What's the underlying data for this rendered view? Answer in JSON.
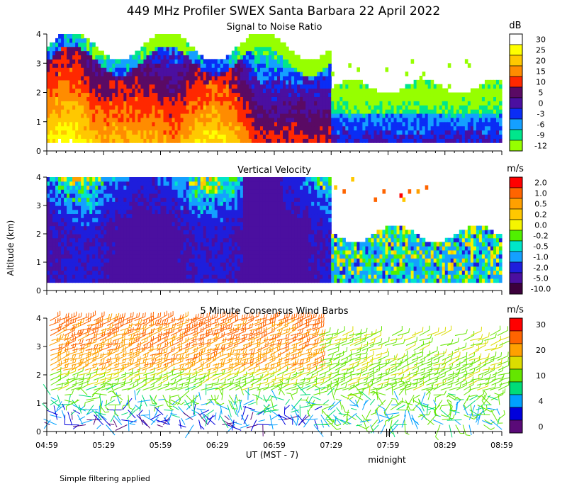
{
  "chart_data": {
    "type": "heatmap",
    "title": "449 MHz Profiler SWEX Santa Barbara 22 April 2022",
    "ylabel": "Altitude (km)",
    "xlabel": "UT  (MST - 7)",
    "x_ticks": [
      "04:59",
      "05:29",
      "05:59",
      "06:29",
      "06:59",
      "07:29",
      "07:59",
      "08:29",
      "08:59"
    ],
    "x_marker": "midnight",
    "y_ticks": [
      "0",
      "1",
      "2",
      "3",
      "4"
    ],
    "ylim": [
      0,
      4
    ],
    "note": "Simple filtering applied",
    "panels": [
      {
        "title": "Signal to Noise Ratio",
        "unit": "dB",
        "legend": [
          {
            "label": "30",
            "color": "#ffffff"
          },
          {
            "label": "25",
            "color": "#ffff00"
          },
          {
            "label": "20",
            "color": "#ffc800"
          },
          {
            "label": "15",
            "color": "#ff8c00"
          },
          {
            "label": "10",
            "color": "#ff2800"
          },
          {
            "label": "5",
            "color": "#5a0a64"
          },
          {
            "label": "0",
            "color": "#4b0fa0"
          },
          {
            "label": "-3",
            "color": "#0a2df5"
          },
          {
            "label": "-6",
            "color": "#14a0ff"
          },
          {
            "label": "-9",
            "color": "#00e68c"
          },
          {
            "label": "-12",
            "color": "#96ff00"
          }
        ]
      },
      {
        "title": "Vertical Velocity",
        "unit": "m/s",
        "legend": [
          {
            "label": "2.0",
            "color": "#ff0000"
          },
          {
            "label": "1.0",
            "color": "#ff6400"
          },
          {
            "label": "0.5",
            "color": "#ffa000"
          },
          {
            "label": "0.2",
            "color": "#ffc800"
          },
          {
            "label": "0.0",
            "color": "#f5f500"
          },
          {
            "label": "-0.2",
            "color": "#50f000"
          },
          {
            "label": "-0.5",
            "color": "#00e6c8"
          },
          {
            "label": "-1.0",
            "color": "#14a0ff"
          },
          {
            "label": "-2.0",
            "color": "#1e1edc"
          },
          {
            "label": "-5.0",
            "color": "#4b0fa0"
          },
          {
            "label": "-10.0",
            "color": "#3c003c"
          }
        ]
      },
      {
        "title": "5 Minute Consensus Wind Barbs",
        "unit": "m/s",
        "legend": [
          {
            "label": "30",
            "color": "#ff0000"
          },
          {
            "label": "",
            "color": "#ff6400"
          },
          {
            "label": "20",
            "color": "#ffa000"
          },
          {
            "label": "",
            "color": "#dcdc00"
          },
          {
            "label": "10",
            "color": "#64e600"
          },
          {
            "label": "",
            "color": "#00dc78"
          },
          {
            "label": "4",
            "color": "#00a0ff"
          },
          {
            "label": "",
            "color": "#0000dc"
          },
          {
            "label": "0",
            "color": "#5a0a78"
          }
        ]
      }
    ]
  }
}
